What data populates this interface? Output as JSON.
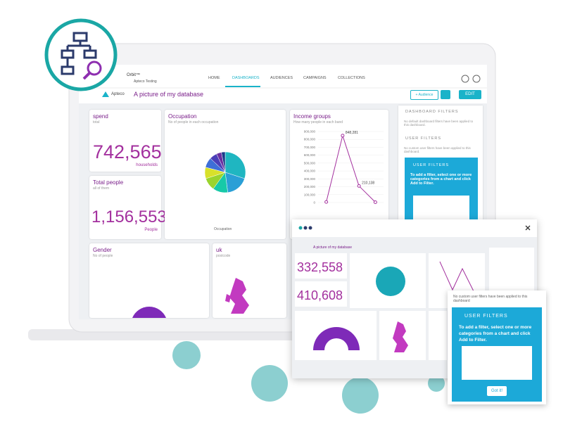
{
  "app": {
    "brand": "Orbit™",
    "project": "Apteco Testing",
    "nav": [
      "HOME",
      "DASHBOARDS",
      "AUDIENCES",
      "CAMPAIGNS",
      "COLLECTIONS"
    ],
    "logo": "Apteco",
    "dashboard_title": "A picture of my database",
    "audience_button": "+ Audience",
    "edit_button": "EDIT"
  },
  "cards": {
    "spend": {
      "title": "spend",
      "subtitle": "total",
      "value": "742,565",
      "unit": "households"
    },
    "people": {
      "title": "Total people",
      "subtitle": "all of them",
      "value": "1,156,553",
      "unit": "People"
    },
    "occupation": {
      "title": "Occupation",
      "subtitle": "No of people in each occupation",
      "axis_label": "Occupation",
      "slices": [
        30,
        18,
        12,
        10,
        9,
        8,
        6,
        4,
        3
      ],
      "colors": [
        "#1fb6c1",
        "#2a9fd6",
        "#17c9a8",
        "#9ad42d",
        "#d8e12a",
        "#3e6fd8",
        "#4b3fb8",
        "#6a2fa0",
        "#1a3a8a"
      ]
    },
    "income": {
      "title": "Income groups",
      "subtitle": "How many people in each band",
      "color": "#a3309e",
      "ylim": [
        0,
        900000
      ],
      "yticks": [
        {
          "value": 0,
          "label": "0"
        },
        {
          "value": 100000,
          "label": "100,000"
        },
        {
          "value": 200000,
          "label": "200,000"
        },
        {
          "value": 300000,
          "label": "300,000"
        },
        {
          "value": 400000,
          "label": "400,000"
        },
        {
          "value": 500000,
          "label": "500,000"
        },
        {
          "value": 600000,
          "label": "600,000"
        },
        {
          "value": 700000,
          "label": "700,000"
        },
        {
          "value": 800000,
          "label": "800,000"
        },
        {
          "value": 900000,
          "label": "900,000"
        }
      ],
      "points": [
        {
          "value": 8000
        },
        {
          "value": 848281,
          "label": "848,281"
        },
        {
          "value": 210138,
          "label": "210,138"
        },
        {
          "value": 4214
        }
      ]
    },
    "gender": {
      "title": "Gender",
      "subtitle": "No of people"
    },
    "uk": {
      "title": "uk",
      "subtitle": "postcode"
    }
  },
  "filters": {
    "dashboard_heading": "DASHBOARD FILTERS",
    "dashboard_note": "No default dashboard filters have been applied to this dashboard.",
    "user_heading": "USER FILTERS",
    "user_note": "No custom user filters have been applied to this dashboard.",
    "hint_heading": "USER FILTERS",
    "hint_text": "To add a filter, select one or more categories from a chart and click Add to Filter."
  },
  "overlay": {
    "title": "A picture of my database",
    "kpi_1": "332,558",
    "kpi_2": "410,608",
    "popup_note": "No custom user filters have been applied to this dashboard",
    "popup_heading": "USER FILTERS",
    "popup_text": "To add a filter, select one or more categories from a chart and click Add to Filter.",
    "popup_button": "Got it!"
  }
}
